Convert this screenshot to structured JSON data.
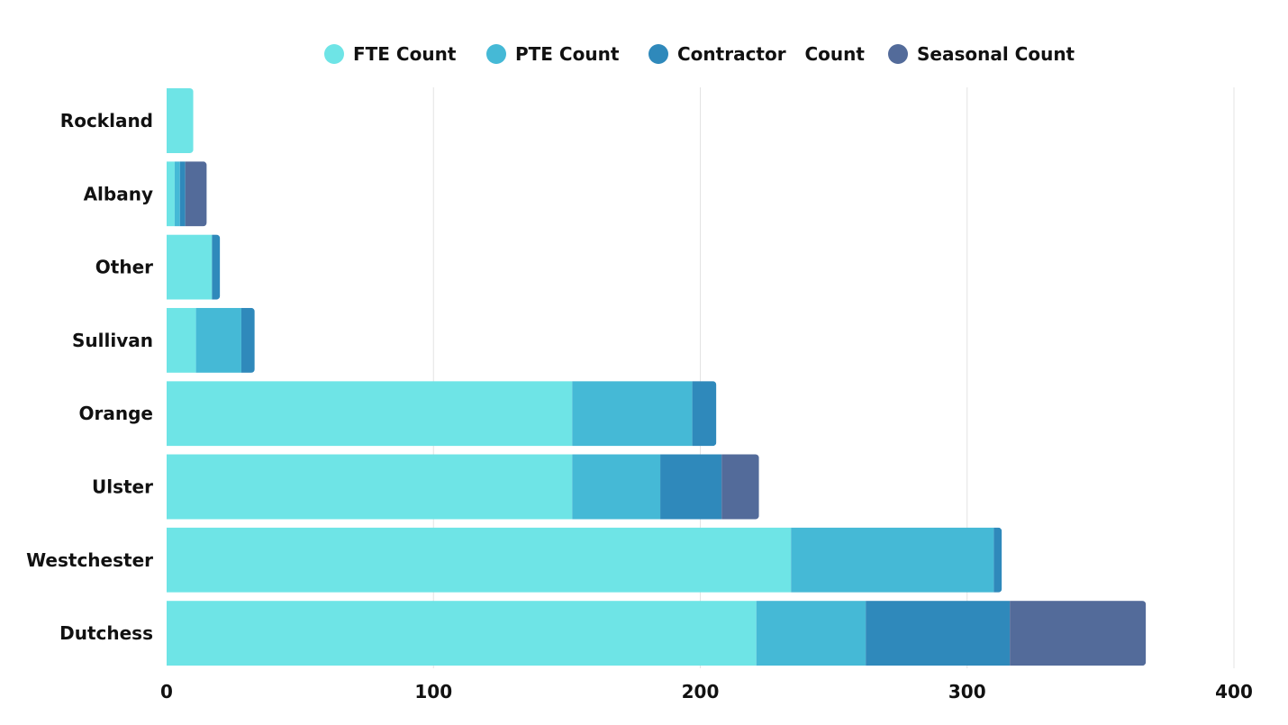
{
  "chart_data": {
    "type": "bar",
    "orientation": "horizontal",
    "stacked": true,
    "categories": [
      "Rockland",
      "Albany",
      "Other",
      "Sullivan",
      "Orange",
      "Ulster",
      "Westchester",
      "Dutchess"
    ],
    "series": [
      {
        "name": "FTE Count",
        "color": "#6ee4e6",
        "values": [
          10,
          3,
          17,
          11,
          152,
          152,
          234,
          221
        ]
      },
      {
        "name": "PTE Count",
        "color": "#45b9d6",
        "values": [
          0,
          2,
          0,
          17,
          45,
          33,
          76,
          41
        ]
      },
      {
        "name": "Contractor   Count",
        "color": "#2f89bb",
        "values": [
          0,
          2,
          3,
          5,
          9,
          23,
          3,
          54
        ]
      },
      {
        "name": "Seasonal Count",
        "color": "#536b9a",
        "values": [
          0,
          8,
          0,
          0,
          0,
          14,
          0,
          51
        ]
      }
    ],
    "xlim": [
      0,
      400
    ],
    "xticks": [
      0,
      100,
      200,
      300,
      400
    ],
    "grid": true,
    "legend_position": "top-center",
    "title": "",
    "xlabel": "",
    "ylabel": ""
  }
}
